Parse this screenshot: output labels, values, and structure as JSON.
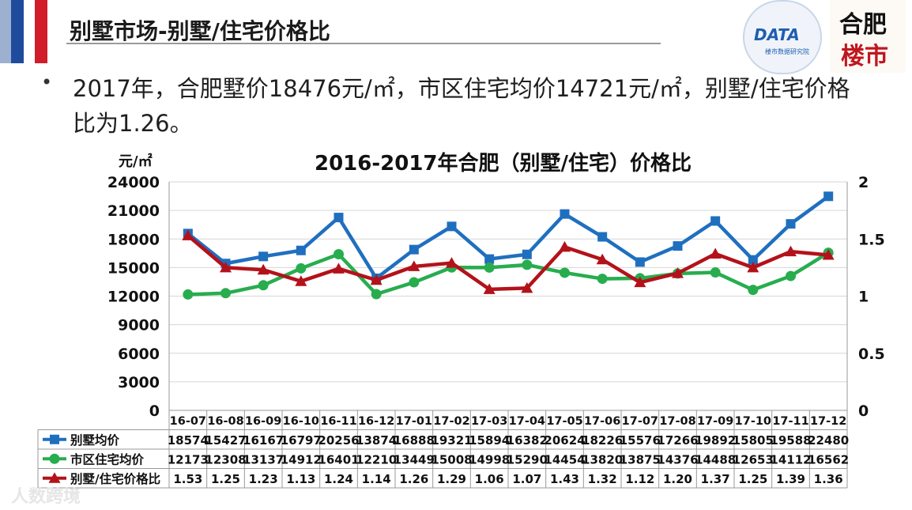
{
  "header": {
    "title": "别墅市场-别墅/住宅价格比"
  },
  "logos": {
    "kdata_text": "DATA",
    "kdata_sub": "楼市数据研究院",
    "stamp_line1": "合肥",
    "stamp_line2": "楼市"
  },
  "body": {
    "bullet": "•",
    "text": "2017年，合肥墅价18476元/㎡，市区住宅均价14721元/㎡，别墅/住宅价格比为1.26。"
  },
  "watermark": "人数跨境",
  "chart_data": {
    "type": "line",
    "title": "2016-2017年合肥（别墅/住宅）价格比",
    "ylabel": "元/㎡",
    "categories": [
      "16-07",
      "16-08",
      "16-09",
      "16-10",
      "16-11",
      "16-12",
      "17-01",
      "17-02",
      "17-03",
      "17-04",
      "17-05",
      "17-06",
      "17-07",
      "17-08",
      "17-09",
      "17-10",
      "17-11",
      "17-12"
    ],
    "ylim": [
      0,
      24000
    ],
    "yticks": [
      0,
      3000,
      6000,
      9000,
      12000,
      15000,
      18000,
      21000,
      24000
    ],
    "y2lim": [
      0,
      2
    ],
    "y2ticks": [
      "0",
      "0.5",
      "1",
      "1.5",
      "2"
    ],
    "grid": true,
    "legend": "data-table",
    "series": [
      {
        "name": "别墅均价",
        "color": "#1f6fbf",
        "marker": "square",
        "axis": "left",
        "values": [
          18574,
          15427,
          16167,
          16797,
          20256,
          13874,
          16888,
          19321,
          15894,
          16382,
          20624,
          18226,
          15576,
          17266,
          19892,
          15805,
          19588,
          22480
        ],
        "labels": [
          "18574",
          "15427",
          "16167",
          "16797",
          "20256",
          "13874",
          "16888",
          "19321",
          "15894",
          "16382",
          "20624",
          "18226",
          "15576",
          "17266",
          "19892",
          "15805",
          "19588",
          "22480"
        ]
      },
      {
        "name": "市区住宅均价",
        "color": "#27ad4e",
        "marker": "circle",
        "axis": "left",
        "values": [
          12173,
          12308,
          13137,
          14912,
          16401,
          12210,
          13449,
          15008,
          14998,
          15290,
          14454,
          13820,
          13875,
          14376,
          14488,
          12653,
          14112,
          16562
        ],
        "labels": [
          "12173",
          "12308",
          "13137",
          "14912",
          "16401",
          "12210",
          "13449",
          "15008",
          "14998",
          "15290",
          "14454",
          "13820",
          "13875",
          "14376",
          "14488",
          "12653",
          "14112",
          "16562"
        ]
      },
      {
        "name": "别墅/住宅价格比",
        "color": "#b3121a",
        "marker": "triangle",
        "axis": "right",
        "values": [
          1.53,
          1.25,
          1.23,
          1.13,
          1.24,
          1.14,
          1.26,
          1.29,
          1.06,
          1.07,
          1.43,
          1.32,
          1.12,
          1.2,
          1.37,
          1.25,
          1.39,
          1.36
        ],
        "labels": [
          "1.53",
          "1.25",
          "1.23",
          "1.13",
          "1.24",
          "1.14",
          "1.26",
          "1.29",
          "1.06",
          "1.07",
          "1.43",
          "1.32",
          "1.12",
          "1.20",
          "1.37",
          "1.25",
          "1.39",
          "1.36"
        ]
      }
    ]
  }
}
